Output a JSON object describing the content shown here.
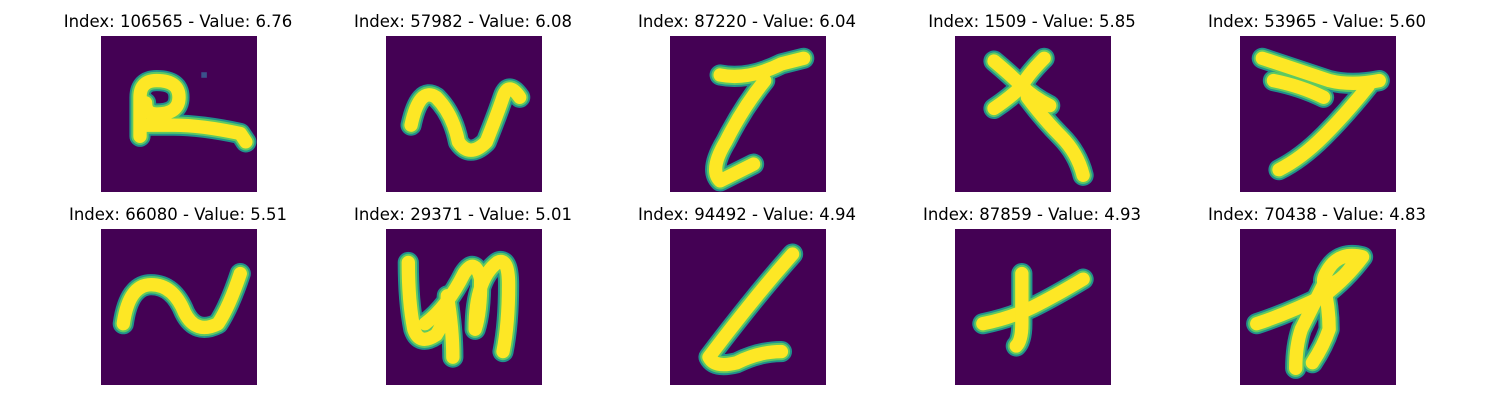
{
  "colors": {
    "background": "#440154",
    "foreground": "#fde725",
    "edge": "#21918c",
    "mid": "#5ec962"
  },
  "panels": [
    {
      "title": "Index: 106565 - Value: 6.76",
      "index": 106565,
      "value": 6.76,
      "glyph": "p-shaped loop with long tail"
    },
    {
      "title": "Index: 57982 - Value: 6.08",
      "index": 57982,
      "value": 6.08,
      "glyph": "wave"
    },
    {
      "title": "Index: 87220 - Value: 6.04",
      "index": 87220,
      "value": 6.04,
      "glyph": "slanted stroke with hook"
    },
    {
      "title": "Index: 1509 - Value: 5.85",
      "index": 1509,
      "value": 5.85,
      "glyph": "x with long tail"
    },
    {
      "title": "Index: 53965 - Value: 5.60",
      "index": 53965,
      "value": 5.6,
      "glyph": "seven-like stroke"
    },
    {
      "title": "Index: 66080 - Value: 5.51",
      "index": 66080,
      "value": 5.51,
      "glyph": "tilde wave"
    },
    {
      "title": "Index: 29371 - Value: 5.01",
      "index": 29371,
      "value": 5.01,
      "glyph": "script stroke"
    },
    {
      "title": "Index: 94492 - Value: 4.94",
      "index": 94492,
      "value": 4.94,
      "glyph": "L-like stroke"
    },
    {
      "title": "Index: 87859 - Value: 4.93",
      "index": 87859,
      "value": 4.93,
      "glyph": "cross"
    },
    {
      "title": "Index: 70438 - Value: 4.83",
      "index": 70438,
      "value": 4.83,
      "glyph": "fish-like loop"
    }
  ]
}
